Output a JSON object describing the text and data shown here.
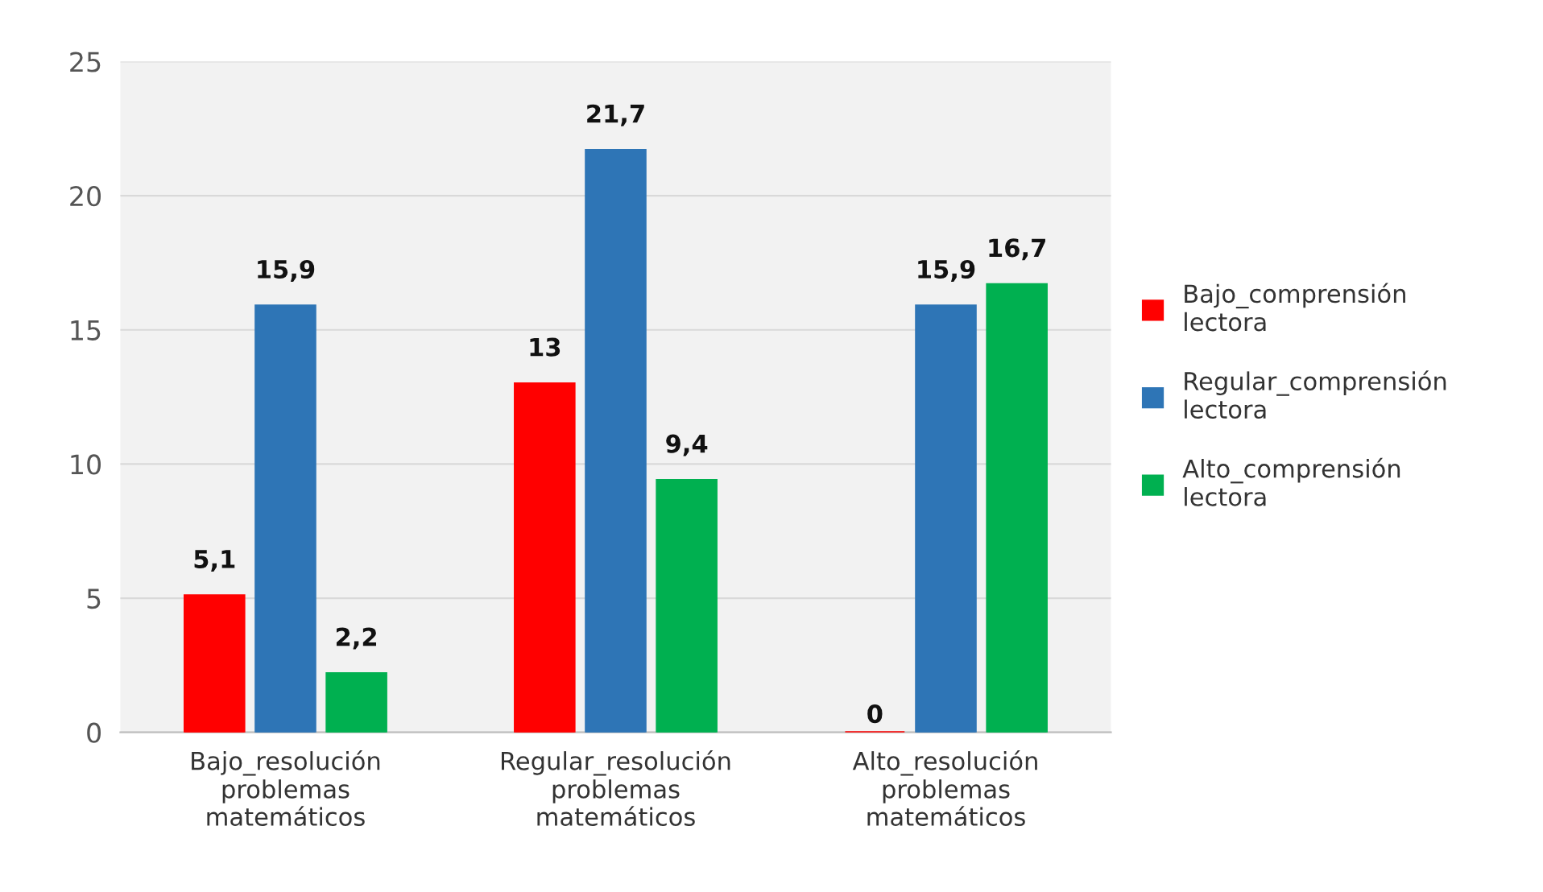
{
  "chart_data": {
    "type": "bar",
    "categories": [
      "Bajo_resolución problemas matemáticos",
      "Regular_resolución problemas matemáticos",
      "Alto_resolución problemas matemáticos"
    ],
    "series": [
      {
        "name": "Bajo_comprensión lectora",
        "color": "#ff0000",
        "values": [
          5.1,
          13,
          0
        ],
        "value_labels": [
          "5,1",
          "13",
          "0"
        ]
      },
      {
        "name": "Regular_comprensión lectora",
        "color": "#2e75b6",
        "values": [
          15.9,
          21.7,
          15.9
        ],
        "value_labels": [
          "15,9",
          "21,7",
          "15,9"
        ]
      },
      {
        "name": "Alto_comprensión lectora",
        "color": "#00b050",
        "values": [
          2.2,
          9.4,
          16.7
        ],
        "value_labels": [
          "2,2",
          "9,4",
          "16,7"
        ]
      }
    ],
    "ylim": [
      0,
      25
    ],
    "yticks": [
      0,
      5,
      10,
      15,
      20,
      25
    ],
    "grid": "y",
    "legend": "right"
  }
}
